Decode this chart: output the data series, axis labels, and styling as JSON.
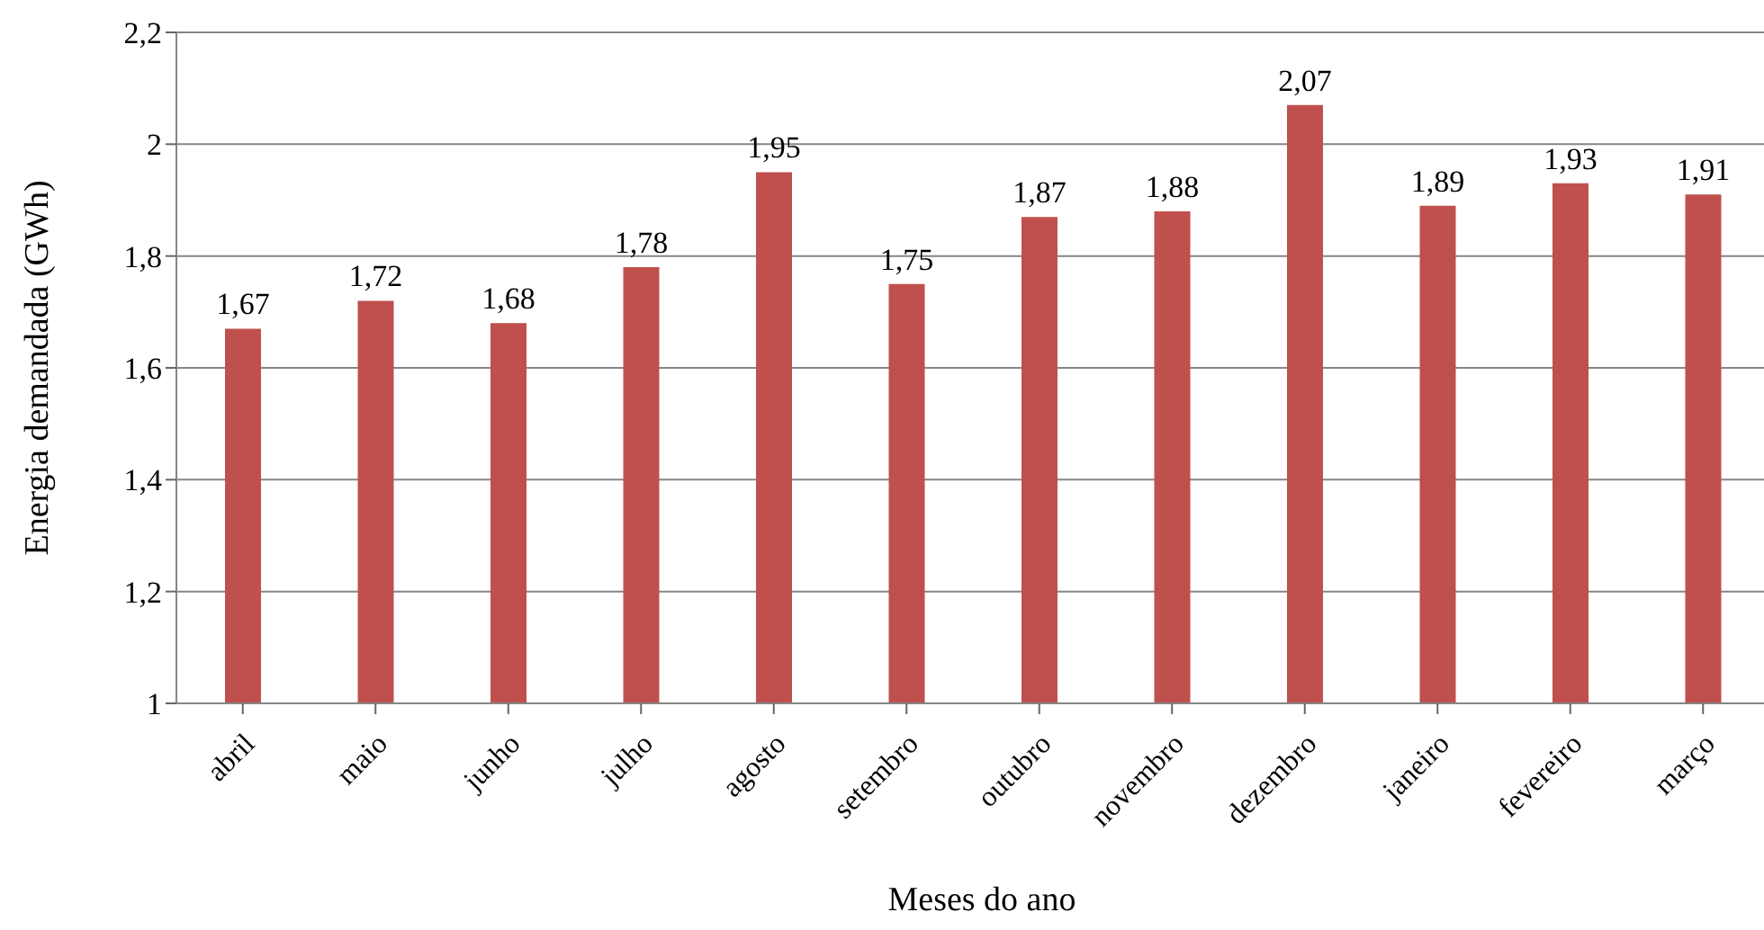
{
  "chart_data": {
    "type": "bar",
    "xlabel": "Meses do ano",
    "ylabel": "Energia  demandada (GWh)",
    "categories": [
      "abril",
      "maio",
      "junho",
      "julho",
      "agosto",
      "setembro",
      "outubro",
      "novembro",
      "dezembro",
      "janeiro",
      "fevereiro",
      "março"
    ],
    "values": [
      1.67,
      1.72,
      1.68,
      1.78,
      1.95,
      1.75,
      1.87,
      1.88,
      2.07,
      1.89,
      1.93,
      1.91
    ],
    "value_labels": [
      "1,67",
      "1,72",
      "1,68",
      "1,78",
      "1,95",
      "1,75",
      "1,87",
      "1,88",
      "2,07",
      "1,89",
      "1,93",
      "1,91"
    ],
    "color": "#c0504d",
    "ylim": [
      1,
      2.2
    ],
    "yticks": [
      1,
      {
        "value": 1.2,
        "label": "1,2"
      },
      {
        "value": 1.4,
        "label": "1,4"
      },
      {
        "value": 1.6,
        "label": "1,6"
      },
      {
        "value": 1.8,
        "label": "1,8"
      },
      2,
      {
        "value": 2.2,
        "label": "2,2"
      }
    ],
    "grid": "y",
    "legend": false
  }
}
